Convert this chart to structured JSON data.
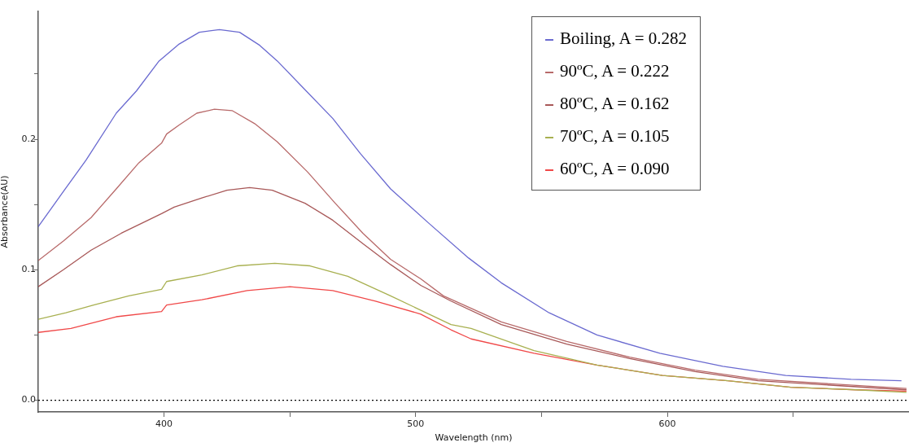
{
  "chart_data": {
    "type": "line",
    "xlabel": "Wavelength (nm)",
    "ylabel": "Absorbance(AU)",
    "xlim": [
      350,
      696
    ],
    "ylim": [
      -0.009,
      0.298
    ],
    "xticks": [
      400,
      {
        "value": 450,
        "label": null
      },
      500,
      {
        "value": 550,
        "label": null
      },
      600,
      {
        "value": 650,
        "label": null
      }
    ],
    "yticks": [
      {
        "value": 0,
        "label": "0.0"
      },
      {
        "value": 0.05,
        "label": null
      },
      0.1,
      {
        "value": 0.15,
        "label": null
      },
      0.2,
      {
        "value": 0.25,
        "label": null
      }
    ],
    "grid": false,
    "legend": "top right",
    "marker": "none",
    "line_style": "solid",
    "ref_lines": [
      {
        "axis": "y",
        "value": 0,
        "color": "#000000",
        "line_style": "dotted"
      }
    ],
    "series": [
      {
        "name": "Boiling, A = 0.282",
        "color": "#6a6ad0",
        "x": [
          350,
          360,
          369,
          381,
          389,
          398,
          406,
          414,
          422,
          430,
          438,
          445,
          455,
          467,
          478,
          490,
          505,
          521,
          534,
          553,
          572,
          597,
          622,
          647,
          673,
          693
        ],
        "values": [
          0.133,
          0.16,
          0.184,
          0.22,
          0.237,
          0.26,
          0.273,
          0.282,
          0.284,
          0.282,
          0.272,
          0.26,
          0.24,
          0.216,
          0.189,
          0.162,
          0.136,
          0.109,
          0.09,
          0.067,
          0.05,
          0.036,
          0.026,
          0.019,
          0.016,
          0.015
        ]
      },
      {
        "name": "90ºC, A = 0.222",
        "color": "#b86a6a",
        "x": [
          350,
          360,
          371,
          381,
          390,
          399,
          401,
          406,
          413,
          420,
          427,
          436,
          445,
          457,
          468,
          479,
          490,
          502,
          511,
          534,
          560,
          585,
          611,
          636,
          695
        ],
        "values": [
          0.107,
          0.122,
          0.14,
          0.162,
          0.182,
          0.197,
          0.204,
          0.211,
          0.22,
          0.223,
          0.222,
          0.212,
          0.198,
          0.175,
          0.151,
          0.128,
          0.108,
          0.093,
          0.08,
          0.06,
          0.045,
          0.033,
          0.023,
          0.016,
          0.009
        ]
      },
      {
        "name": "80ºC, A = 0.162",
        "color": "#a85858",
        "x": [
          350,
          360,
          371,
          383,
          399,
          404,
          415,
          425,
          434,
          443,
          456,
          467,
          479,
          490,
          502,
          514,
          534,
          560,
          585,
          611,
          636,
          695
        ],
        "values": [
          0.087,
          0.1,
          0.115,
          0.128,
          0.143,
          0.148,
          0.155,
          0.161,
          0.163,
          0.161,
          0.151,
          0.138,
          0.12,
          0.104,
          0.088,
          0.076,
          0.058,
          0.043,
          0.032,
          0.022,
          0.015,
          0.008
        ]
      },
      {
        "name": "70ºC, A = 0.105",
        "color": "#a8b050",
        "x": [
          350,
          361,
          372,
          386,
          399,
          401,
          415,
          429,
          444,
          458,
          473,
          490,
          514,
          522,
          547,
          572,
          598,
          624,
          649,
          675,
          695
        ],
        "values": [
          0.062,
          0.067,
          0.073,
          0.08,
          0.085,
          0.091,
          0.096,
          0.103,
          0.105,
          0.103,
          0.095,
          0.08,
          0.058,
          0.055,
          0.038,
          0.027,
          0.019,
          0.015,
          0.01,
          0.008,
          0.006
        ]
      },
      {
        "name": "60ºC, A = 0.090",
        "color": "#f04848",
        "x": [
          350,
          363,
          381,
          399,
          401,
          415,
          433,
          450,
          467,
          484,
          502,
          514,
          522,
          547,
          572,
          598,
          624,
          649,
          675,
          695
        ],
        "values": [
          0.052,
          0.055,
          0.064,
          0.068,
          0.073,
          0.077,
          0.084,
          0.087,
          0.084,
          0.076,
          0.066,
          0.054,
          0.047,
          0.036,
          0.027,
          0.019,
          0.015,
          0.01,
          0.008,
          0.007
        ]
      }
    ]
  }
}
